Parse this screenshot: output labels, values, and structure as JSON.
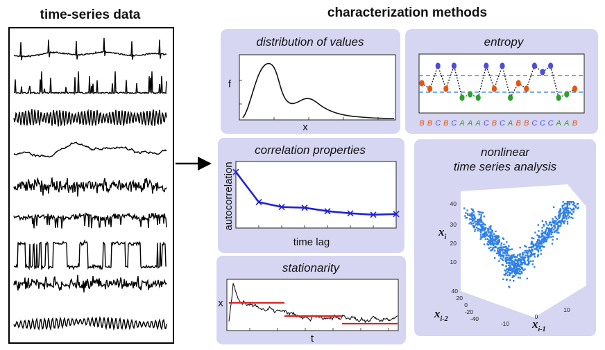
{
  "headings": {
    "left": "time-series data",
    "right": "characterization methods"
  },
  "panels": {
    "distribution": {
      "title": "distribution of values",
      "ylabel": "f",
      "xlabel": "x"
    },
    "entropy": {
      "title": "entropy",
      "symbols": [
        "B",
        "B",
        "C",
        "B",
        "C",
        "A",
        "A",
        "A",
        "C",
        "B",
        "C",
        "A",
        "B",
        "B",
        "C",
        "C",
        "C",
        "A",
        "A",
        "B"
      ]
    },
    "correlation": {
      "title": "correlation properties",
      "ylabel": "autocorrelation",
      "xlabel": "time lag",
      "values": [
        1.0,
        0.57,
        0.5,
        0.49,
        0.44,
        0.41,
        0.39,
        0.4
      ]
    },
    "stationarity": {
      "title": "stationarity",
      "ylabel": "x",
      "xlabel": "t"
    },
    "nonlinear": {
      "title_line1": "nonlinear",
      "title_line2": "time series analysis",
      "z_ticks": [
        "40",
        "30",
        "20",
        "10"
      ],
      "y_ticks": [
        "40",
        "20",
        "0",
        "-20",
        "-40"
      ],
      "x_ticks": [
        "-10",
        "0",
        "10"
      ],
      "label_z": "x",
      "label_z_sub": "i",
      "label_y": "x",
      "label_y_sub": "i-2",
      "label_x": "x",
      "label_x_sub": "i-1"
    }
  },
  "colors": {
    "panel_bg": "#d6d6f2",
    "autocorr_line": "#2020d8",
    "stationarity_mean": "#e02020",
    "entropy_level": "#4a8fe0",
    "symbol_A": "#2ca02c",
    "symbol_B": "#e6550d",
    "symbol_C": "#4b4fd8",
    "scatter": "#2f7fe6"
  }
}
